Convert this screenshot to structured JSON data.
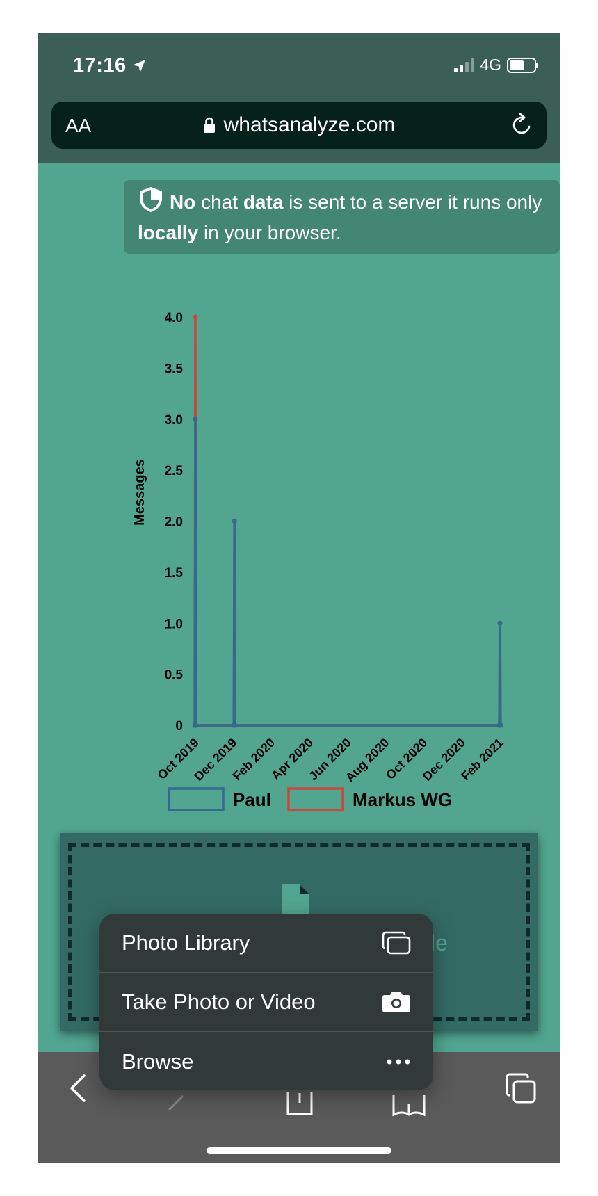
{
  "status_bar": {
    "time": "17:16",
    "network": "4G"
  },
  "browser": {
    "text_size_label": "AA",
    "url": "whatsanalyze.com"
  },
  "notice": {
    "parts": [
      "No",
      " chat ",
      "data",
      " is sent to a server it runs only ",
      "locally",
      " in your browser."
    ]
  },
  "chart_data": {
    "type": "line",
    "ylabel": "Messages",
    "ylim": [
      0,
      4.0
    ],
    "y_ticks": [
      "4.0",
      "3.5",
      "3.0",
      "2.5",
      "2.0",
      "1.5",
      "1.0",
      "0.5",
      "0"
    ],
    "x_ticks": [
      "Oct 2019",
      "Dec 2019",
      "Feb 2020",
      "Apr 2020",
      "Jun 2020",
      "Aug 2020",
      "Oct 2020",
      "Dec 2020",
      "Feb 2021"
    ],
    "stacked": true,
    "series": [
      {
        "name": "Paul",
        "color": "#336a8e",
        "points": [
          [
            "2019-10-15",
            0
          ],
          [
            "2019-10-16",
            3
          ],
          [
            "2019-10-17",
            0
          ],
          [
            "2019-12-17",
            0
          ],
          [
            "2019-12-18",
            2
          ],
          [
            "2019-12-19",
            0
          ],
          [
            "2021-02-17",
            0
          ],
          [
            "2021-02-18",
            1
          ],
          [
            "2021-02-19",
            0
          ]
        ]
      },
      {
        "name": "Markus WG",
        "color": "#c9473d",
        "points": [
          [
            "2019-10-15",
            0
          ],
          [
            "2019-10-16",
            1
          ],
          [
            "2019-10-17",
            0
          ],
          [
            "2019-12-17",
            0
          ],
          [
            "2019-12-18",
            0
          ],
          [
            "2019-12-19",
            0
          ],
          [
            "2021-02-17",
            0
          ],
          [
            "2021-02-18",
            0
          ],
          [
            "2021-02-19",
            0
          ]
        ]
      }
    ]
  },
  "dropzone": {
    "text": "le"
  },
  "action_sheet": {
    "items": [
      {
        "label": "Photo Library",
        "icon": "photo-library-icon"
      },
      {
        "label": "Take Photo or Video",
        "icon": "camera-icon"
      },
      {
        "label": "Browse",
        "icon": "more-icon"
      }
    ]
  },
  "toolbar": {
    "icons": [
      "back-icon",
      "forward-icon",
      "share-icon",
      "bookmarks-icon",
      "tabs-icon"
    ]
  }
}
